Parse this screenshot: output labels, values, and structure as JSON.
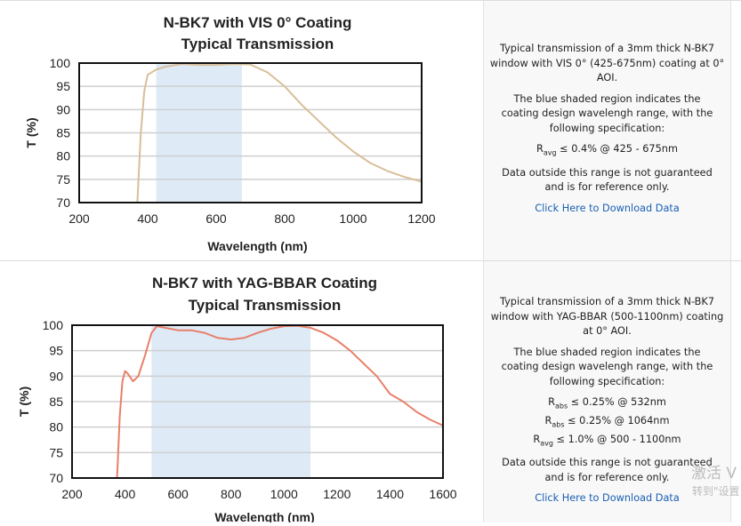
{
  "panels": [
    {
      "title1": "N-BK7 with VIS 0° Coating",
      "title2": "Typical Transmission",
      "desc1": "Typical transmission of a 3mm thick N-BK7 window with VIS 0° (425-675nm) coating at 0° AOI.",
      "desc2": "The blue shaded region indicates the coating design wavelengh range, with the following specification:",
      "specs": [
        {
          "r": "R",
          "sub": "avg",
          "text": " ≤ 0.4% @ 425 - 675nm"
        }
      ],
      "desc3": "Data outside this range is not guaranteed and is for reference only.",
      "link": "Click Here to Download Data"
    },
    {
      "title1": "N-BK7 with YAG-BBAR Coating",
      "title2": "Typical Transmission",
      "desc1": "Typical transmission of a 3mm thick N-BK7 window with YAG-BBAR (500-1100nm) coating at 0° AOI.",
      "desc2": "The blue shaded region indicates the coating design wavelengh range, with the following specification:",
      "specs": [
        {
          "r": "R",
          "sub": "abs",
          "text": " ≤ 0.25% @ 532nm"
        },
        {
          "r": "R",
          "sub": "abs",
          "text": " ≤ 0.25% @ 1064nm"
        },
        {
          "r": "R",
          "sub": "avg",
          "text": " ≤ 1.0% @ 500 - 1100nm"
        }
      ],
      "desc3": "Data outside this range is not guaranteed and is for reference only.",
      "link": "Click Here to Download Data"
    }
  ],
  "watermark": {
    "line1": "激活 V",
    "line2": "转到\"设置"
  },
  "chart_data": [
    {
      "type": "line",
      "title": "N-BK7 with VIS 0° Coating Typical Transmission",
      "xlabel": "Wavelength (nm)",
      "ylabel": "T (%)",
      "xlim": [
        200,
        1200
      ],
      "ylim": [
        70,
        100
      ],
      "xticks": [
        200,
        400,
        600,
        800,
        1000,
        1200
      ],
      "yticks": [
        70,
        75,
        80,
        85,
        90,
        95,
        100
      ],
      "grid": true,
      "shaded_range": [
        425,
        675
      ],
      "shade_color": "#deeaf6",
      "line_color": "#d8bf98",
      "x": [
        370,
        380,
        390,
        400,
        425,
        450,
        500,
        550,
        600,
        650,
        700,
        750,
        800,
        850,
        900,
        950,
        1000,
        1050,
        1100,
        1150,
        1200
      ],
      "y": [
        70,
        85,
        94,
        97.5,
        98.6,
        99.2,
        99.8,
        99.6,
        99.6,
        99.8,
        99.7,
        98,
        95,
        91,
        87.5,
        84,
        81,
        78.5,
        76.8,
        75.5,
        74.5
      ]
    },
    {
      "type": "line",
      "title": "N-BK7 with YAG-BBAR Coating Typical Transmission",
      "xlabel": "Wavelength (nm)",
      "ylabel": "T (%)",
      "xlim": [
        200,
        1600
      ],
      "ylim": [
        70,
        100
      ],
      "xticks": [
        200,
        400,
        600,
        800,
        1000,
        1200,
        1400,
        1600
      ],
      "yticks": [
        70,
        75,
        80,
        85,
        90,
        95,
        100
      ],
      "grid": true,
      "shaded_range": [
        500,
        1100
      ],
      "shade_color": "#deeaf6",
      "line_color": "#e8806a",
      "x": [
        370,
        380,
        390,
        400,
        410,
        430,
        450,
        475,
        500,
        520,
        550,
        600,
        650,
        700,
        750,
        800,
        850,
        900,
        950,
        1000,
        1050,
        1100,
        1150,
        1200,
        1250,
        1300,
        1350,
        1400,
        1450,
        1500,
        1550,
        1600
      ],
      "y": [
        70,
        82,
        89,
        91,
        90.5,
        89,
        90,
        94,
        98.5,
        99.8,
        99.5,
        99,
        99,
        98.5,
        97.5,
        97.2,
        97.5,
        98.5,
        99.3,
        99.8,
        99.9,
        99.5,
        98.5,
        97,
        95,
        92.5,
        90,
        86.5,
        85,
        83,
        81.5,
        80.3
      ]
    }
  ]
}
